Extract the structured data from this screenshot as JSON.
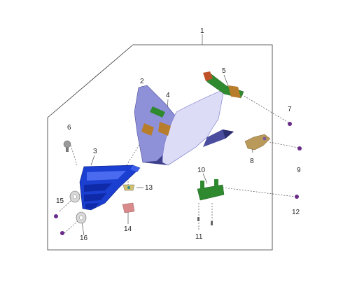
{
  "callouts": [
    {
      "id": "c1",
      "text": "1"
    },
    {
      "id": "c2",
      "text": "2"
    },
    {
      "id": "c3",
      "text": "3"
    },
    {
      "id": "c4",
      "text": "4"
    },
    {
      "id": "c5",
      "text": "5"
    },
    {
      "id": "c6",
      "text": "6"
    },
    {
      "id": "c7",
      "text": "7"
    },
    {
      "id": "c8",
      "text": "8"
    },
    {
      "id": "c9",
      "text": "9"
    },
    {
      "id": "c10",
      "text": "10"
    },
    {
      "id": "c11",
      "text": "11"
    },
    {
      "id": "c12",
      "text": "12"
    },
    {
      "id": "c13",
      "text": "13"
    },
    {
      "id": "c14",
      "text": "14"
    },
    {
      "id": "c15",
      "text": "15"
    },
    {
      "id": "c16",
      "text": "16"
    }
  ],
  "colors": {
    "outline": "#333333",
    "cowl_light": "#d7d8f4",
    "cowl_mid": "#9c9ee0",
    "cowl_dark": "#3d3f8a",
    "duct_blue": "#1b3fd1",
    "duct_dark": "#0b1f80",
    "bracket_green": "#2f8a2f",
    "bracket_orange": "#b87d2a",
    "bracket_tan": "#b99a5a",
    "screw_purple": "#6a2a8a",
    "washer_gray": "#bdbdbd",
    "clip_pink": "#d98a8a"
  }
}
